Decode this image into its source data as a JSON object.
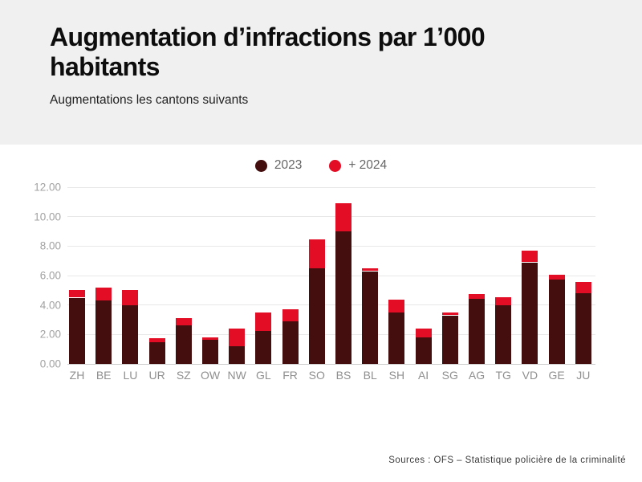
{
  "header": {
    "title": "Augmentation d’infractions par 1’000 habitants",
    "subtitle": "Augmentations les cantons suivants"
  },
  "footer": {
    "source": "Sources : OFS – Statistique policière de la criminalité"
  },
  "colors": {
    "series_2023": "#440d0e",
    "series_2024": "#e40d26",
    "header_background": "#f0f0f0",
    "gridline": "#e8e8e8",
    "baseline": "#cccccc"
  },
  "chart_data": {
    "type": "bar",
    "stacked": true,
    "title": "Augmentation d’infractions par 1’000 habitants",
    "subtitle": "Augmentations les cantons suivants",
    "xlabel": "",
    "ylabel": "",
    "ylim": [
      0,
      12
    ],
    "grid": "horizontal",
    "legend_position": "top-center",
    "categories": [
      "ZH",
      "BE",
      "LU",
      "UR",
      "SZ",
      "OW",
      "NW",
      "GL",
      "FR",
      "SO",
      "BS",
      "BL",
      "SH",
      "AI",
      "SG",
      "AG",
      "TG",
      "VD",
      "GE",
      "JU"
    ],
    "series": [
      {
        "name": "2023",
        "color": "#440d0e",
        "values": [
          4.5,
          4.3,
          4.0,
          1.45,
          2.6,
          1.65,
          1.2,
          2.25,
          2.9,
          6.5,
          9.0,
          6.3,
          3.5,
          1.8,
          3.3,
          4.4,
          4.0,
          6.9,
          5.75,
          4.8
        ]
      },
      {
        "name": "+ 2024",
        "color": "#e40d26",
        "values": [
          0.5,
          0.9,
          1.0,
          0.3,
          0.5,
          0.15,
          1.2,
          1.25,
          0.8,
          1.95,
          1.9,
          0.2,
          0.85,
          0.6,
          0.2,
          0.35,
          0.55,
          0.8,
          0.3,
          0.75
        ]
      }
    ],
    "y_ticks": [
      {
        "value": 0,
        "label": "0.00"
      },
      {
        "value": 2,
        "label": "2.00"
      },
      {
        "value": 4,
        "label": "4.00"
      },
      {
        "value": 6,
        "label": "6.00"
      },
      {
        "value": 8,
        "label": "8.00"
      },
      {
        "value": 10,
        "label": "10.00"
      },
      {
        "value": 12,
        "label": "12.00"
      }
    ]
  }
}
